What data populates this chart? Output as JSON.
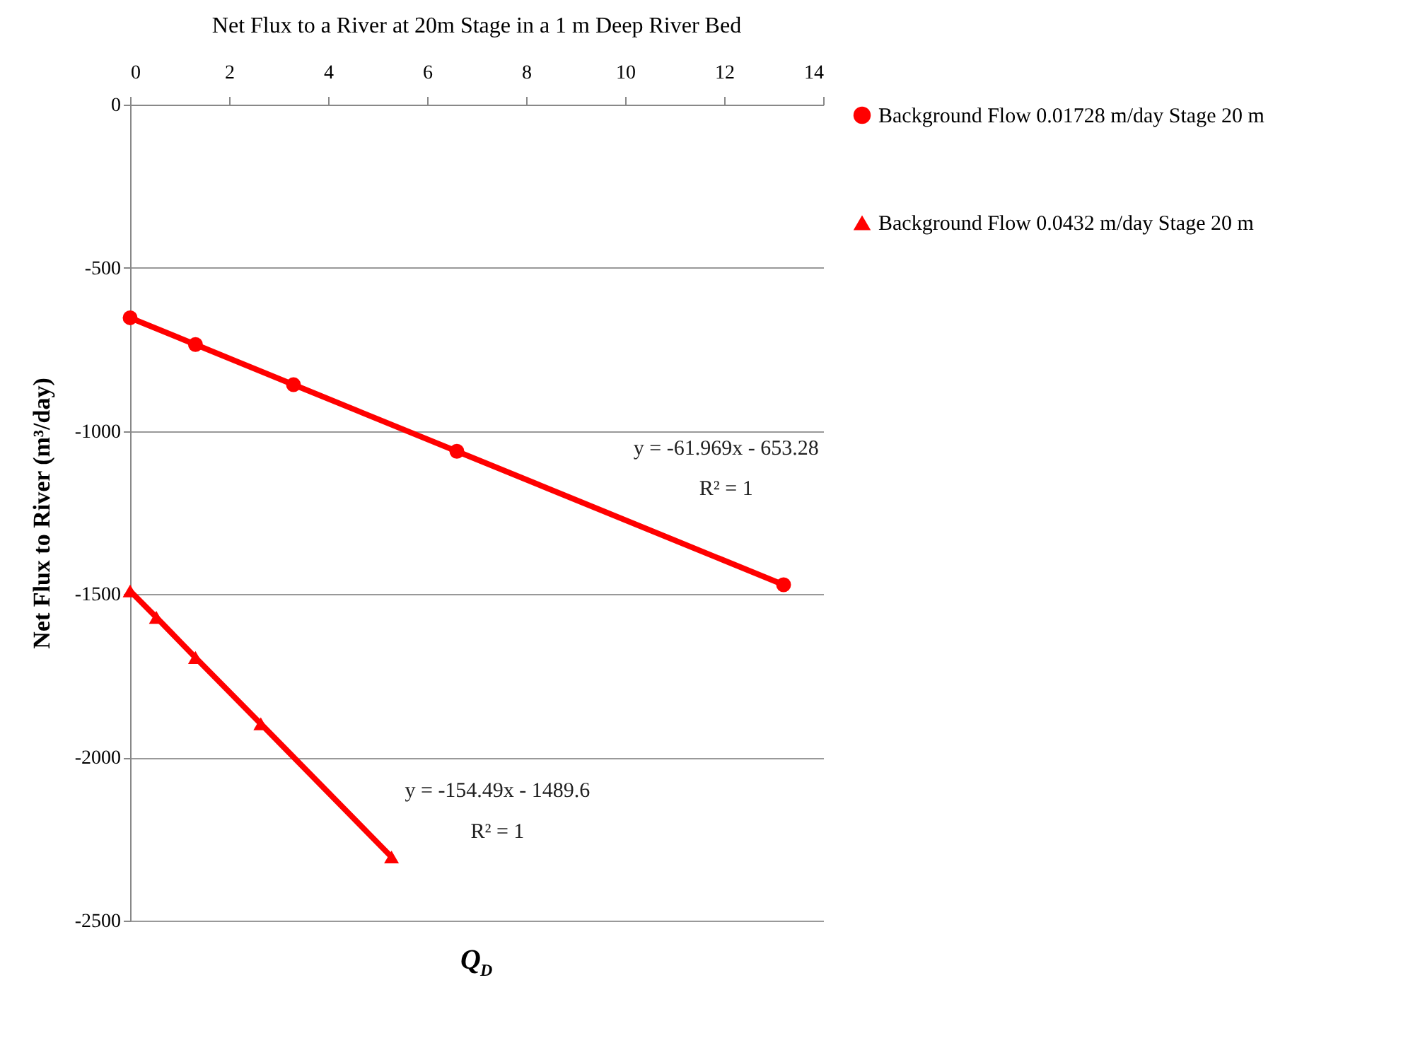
{
  "chart_data": {
    "type": "line",
    "title": "Net Flux to a River at 20m Stage in a 1 m Deep River Bed",
    "xlabel": "Q$_{D}$",
    "ylabel": "Net Flux to River (m³/day)",
    "xlim": [
      0,
      14
    ],
    "xticks": [
      0,
      2,
      4,
      6,
      8,
      10,
      12,
      14
    ],
    "ylim": [
      -2500,
      0
    ],
    "yticks": [
      -2500,
      -2000,
      -1500,
      -1000,
      -500,
      0
    ],
    "grid": "y",
    "legend": "right",
    "line_style": "solid",
    "series": [
      {
        "name": "Background Flow 0.01728 m/day Stage 20 m",
        "color": "#ff0000",
        "marker": "circle",
        "x": [
          0,
          1.32,
          3.3,
          6.6,
          13.2
        ],
        "values": [
          -653,
          -735,
          -858,
          -1062,
          -1471
        ]
      },
      {
        "name": "Background Flow 0.0432 m/day Stage 20 m",
        "color": "#ff0000",
        "marker": "triangle",
        "x": [
          0,
          0.53,
          1.32,
          2.64,
          5.28
        ],
        "values": [
          -1490,
          -1571,
          -1694,
          -1897,
          -2305
        ]
      }
    ],
    "annotations": [
      "y = -61.969x - 653.28",
      "R² = 1",
      "y = -154.49x - 1489.6",
      "R² = 1"
    ]
  }
}
